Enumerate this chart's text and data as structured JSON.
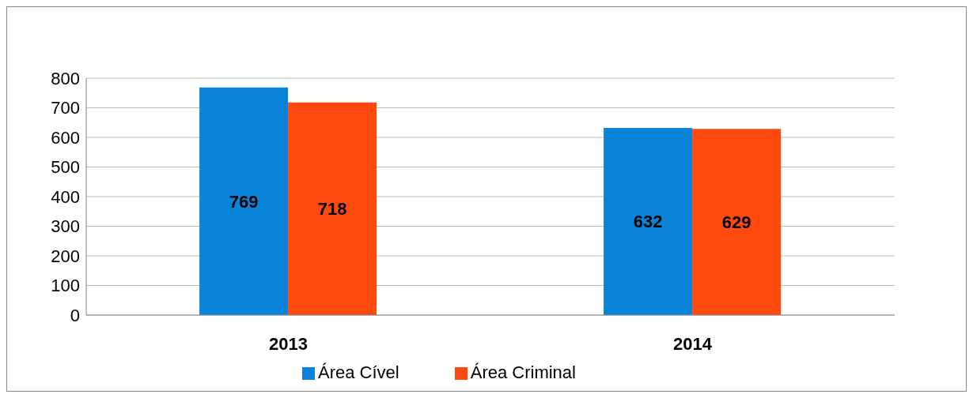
{
  "chart_data": {
    "type": "bar",
    "categories": [
      "2013",
      "2014"
    ],
    "series": [
      {
        "name": "Área Cível",
        "color": "#0a84d8",
        "values": [
          769,
          632
        ]
      },
      {
        "name": "Área Criminal",
        "color": "#ff4a0f",
        "values": [
          718,
          629
        ]
      }
    ],
    "ylim": [
      0,
      800
    ],
    "yticks": [
      0,
      100,
      200,
      300,
      400,
      500,
      600,
      700,
      800
    ],
    "grid": "y",
    "legend": "bottom",
    "data_labels": true
  }
}
